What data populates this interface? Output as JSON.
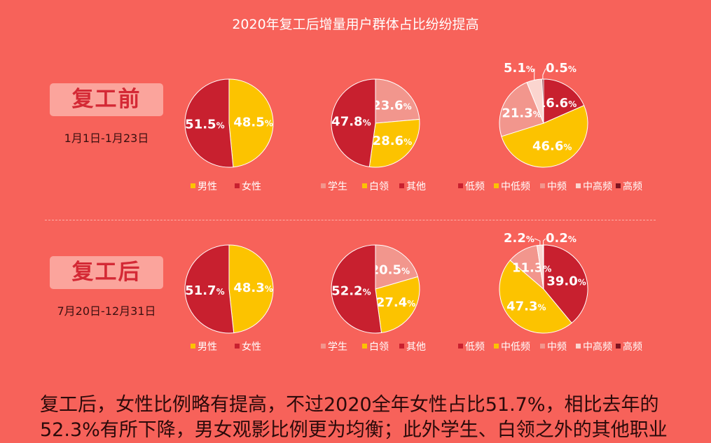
{
  "title": "2020年复工后增量用户群体占比纷纷提高",
  "periods": [
    {
      "label": "复工前",
      "range": "1月1日-1月23日"
    },
    {
      "label": "复工后",
      "range": "7月20日-12月31日"
    }
  ],
  "chart_data": [
    {
      "type": "pie",
      "title": "",
      "period": "复工前",
      "legend": [
        "男性",
        "女性"
      ],
      "slices": [
        {
          "name": "男性",
          "value": 48.5,
          "label": "48.5",
          "color": "#fcc300"
        },
        {
          "name": "女性",
          "value": 51.5,
          "label": "51.5",
          "color": "#c8202f"
        }
      ]
    },
    {
      "type": "pie",
      "title": "",
      "period": "复工前",
      "legend": [
        "学生",
        "白领",
        "其他"
      ],
      "slices": [
        {
          "name": "学生",
          "value": 23.6,
          "label": "23.6",
          "color": "#f2968d"
        },
        {
          "name": "白领",
          "value": 28.6,
          "label": "28.6",
          "color": "#fcc300"
        },
        {
          "name": "其他",
          "value": 47.8,
          "label": "47.8",
          "color": "#c8202f"
        }
      ]
    },
    {
      "type": "pie",
      "title": "",
      "period": "复工前",
      "legend": [
        "低频",
        "中低频",
        "中频",
        "中高频",
        "高频"
      ],
      "slices": [
        {
          "name": "低频",
          "value": 16.6,
          "label": "16.6",
          "color": "#c8202f"
        },
        {
          "name": "中低频",
          "value": 46.6,
          "label": "46.6",
          "color": "#fcc300"
        },
        {
          "name": "中频",
          "value": 21.3,
          "label": "21.3",
          "color": "#f2968d"
        },
        {
          "name": "中高频",
          "value": 5.1,
          "label": "5.1",
          "color": "#fbd5cf"
        },
        {
          "name": "高频",
          "value": 0.5,
          "label": "0.5",
          "color": "#7e1420"
        }
      ]
    },
    {
      "type": "pie",
      "title": "",
      "period": "复工后",
      "legend": [
        "男性",
        "女性"
      ],
      "slices": [
        {
          "name": "男性",
          "value": 48.3,
          "label": "48.3",
          "color": "#fcc300"
        },
        {
          "name": "女性",
          "value": 51.7,
          "label": "51.7",
          "color": "#c8202f"
        }
      ]
    },
    {
      "type": "pie",
      "title": "",
      "period": "复工后",
      "legend": [
        "学生",
        "白领",
        "其他"
      ],
      "slices": [
        {
          "name": "学生",
          "value": 20.5,
          "label": "20.5",
          "color": "#f2968d"
        },
        {
          "name": "白领",
          "value": 27.4,
          "label": "27.4",
          "color": "#fcc300"
        },
        {
          "name": "其他",
          "value": 52.2,
          "label": "52.2",
          "color": "#c8202f"
        }
      ]
    },
    {
      "type": "pie",
      "title": "",
      "period": "复工后",
      "legend": [
        "低频",
        "中低频",
        "中频",
        "中高频",
        "高频"
      ],
      "slices": [
        {
          "name": "低频",
          "value": 39.0,
          "label": "39.0",
          "color": "#c8202f"
        },
        {
          "name": "中低频",
          "value": 47.3,
          "label": "47.3",
          "color": "#fcc300"
        },
        {
          "name": "中频",
          "value": 11.3,
          "label": "11.3",
          "color": "#f2968d"
        },
        {
          "name": "中高频",
          "value": 2.2,
          "label": "2.2",
          "color": "#fbd5cf"
        },
        {
          "name": "高频",
          "value": 0.2,
          "label": "0.2",
          "color": "#7e1420"
        }
      ]
    }
  ],
  "footer": "复工后，女性比例略有提高，不过2020全年女性占比51.7%，相比去年的52.3%有所下降，男女观影比例更为均衡；此外学生、白领之外的其他职业"
}
